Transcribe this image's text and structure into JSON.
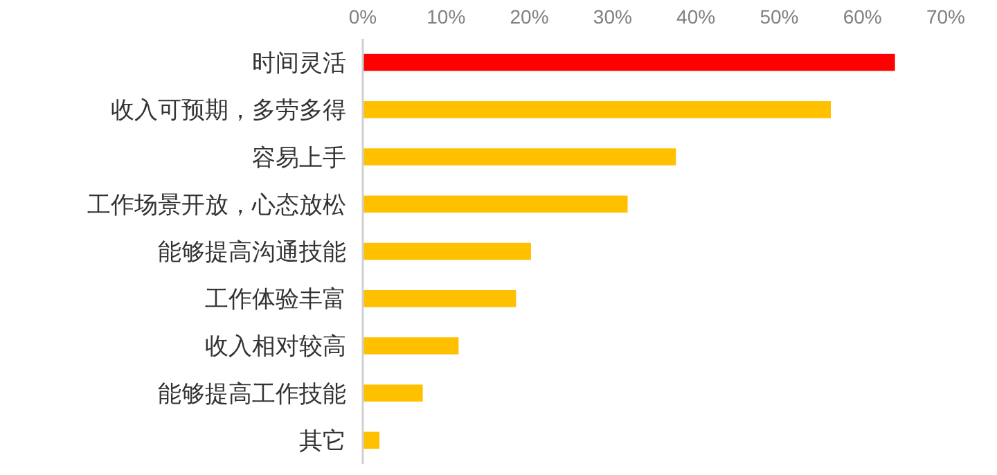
{
  "chart_data": {
    "type": "bar",
    "orientation": "horizontal",
    "categories": [
      "时间灵活",
      "收入可预期，多劳多得",
      "容易上手",
      "工作场景开放，心态放松",
      "能够提高沟通技能",
      "工作体验丰富",
      "收入相对较高",
      "能够提高工作技能",
      "其它"
    ],
    "values": [
      63.9,
      56.2,
      37.6,
      31.8,
      20.2,
      18.4,
      11.5,
      7.2,
      2.0
    ],
    "colors": [
      "#ff0000",
      "#ffc000",
      "#ffc000",
      "#ffc000",
      "#ffc000",
      "#ffc000",
      "#ffc000",
      "#ffc000",
      "#ffc000"
    ],
    "xlim": [
      0,
      70
    ],
    "xticks": [
      {
        "value": 0,
        "label": "0%"
      },
      {
        "value": 10,
        "label": "10%"
      },
      {
        "value": 20,
        "label": "20%"
      },
      {
        "value": 30,
        "label": "30%"
      },
      {
        "value": 40,
        "label": "40%"
      },
      {
        "value": 50,
        "label": "50%"
      },
      {
        "value": 60,
        "label": "60%"
      },
      {
        "value": 70,
        "label": "70%"
      }
    ]
  }
}
